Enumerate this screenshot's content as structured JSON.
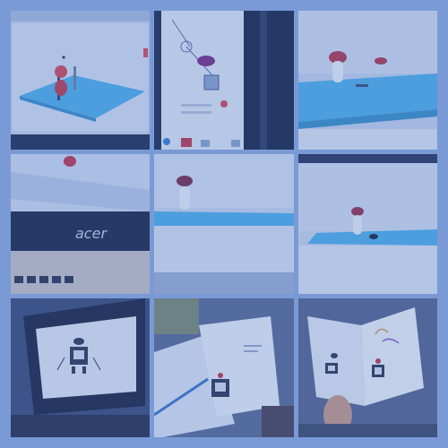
{
  "collage": {
    "rows": 3,
    "columns": 3,
    "border_color": "#7a9ad6",
    "tiles": [
      {
        "scene": "tinkercad-editor-figure-on-workplane"
      },
      {
        "scene": "monitor-closeup-3d-editor"
      },
      {
        "scene": "mushroom-figure-on-blue-workplane"
      },
      {
        "scene": "laptop-screen-acer"
      },
      {
        "scene": "mushroom-figure-closeup"
      },
      {
        "scene": "mushroom-figure-with-dark-dome"
      },
      {
        "scene": "laptop-showing-robot-drawing"
      },
      {
        "scene": "paper-card-with-robot-drawing"
      },
      {
        "scene": "hand-holding-open-card"
      }
    ]
  },
  "laptop_brand": "acer"
}
